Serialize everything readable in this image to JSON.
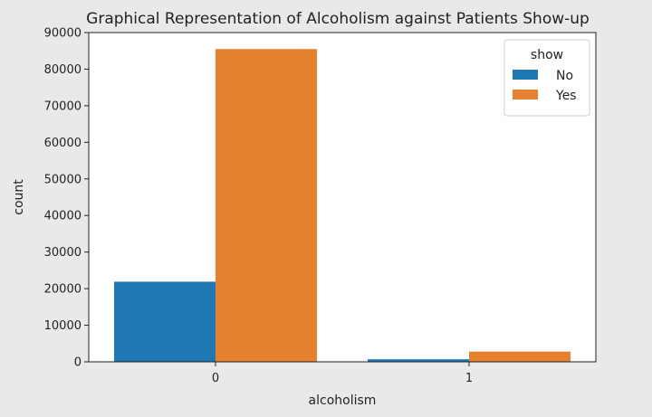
{
  "chart_data": {
    "type": "bar",
    "title": "Graphical Representation of Alcoholism against Patients Show-up",
    "xlabel": "alcoholism",
    "ylabel": "count",
    "categories": [
      "0",
      "1"
    ],
    "ylim": [
      0,
      90000
    ],
    "yticks": [
      0,
      10000,
      20000,
      30000,
      40000,
      50000,
      60000,
      70000,
      80000,
      90000
    ],
    "yticklabels": [
      "0",
      "10000",
      "20000",
      "30000",
      "40000",
      "50000",
      "60000",
      "70000",
      "80000",
      "90000"
    ],
    "grid": false,
    "legend": {
      "title": "show",
      "placement": "top-right"
    },
    "series": [
      {
        "name": "No",
        "color": "#1f77b4",
        "values": [
          21900,
          700
        ]
      },
      {
        "name": "Yes",
        "color": "#e6812f",
        "values": [
          85500,
          2800
        ]
      }
    ]
  }
}
